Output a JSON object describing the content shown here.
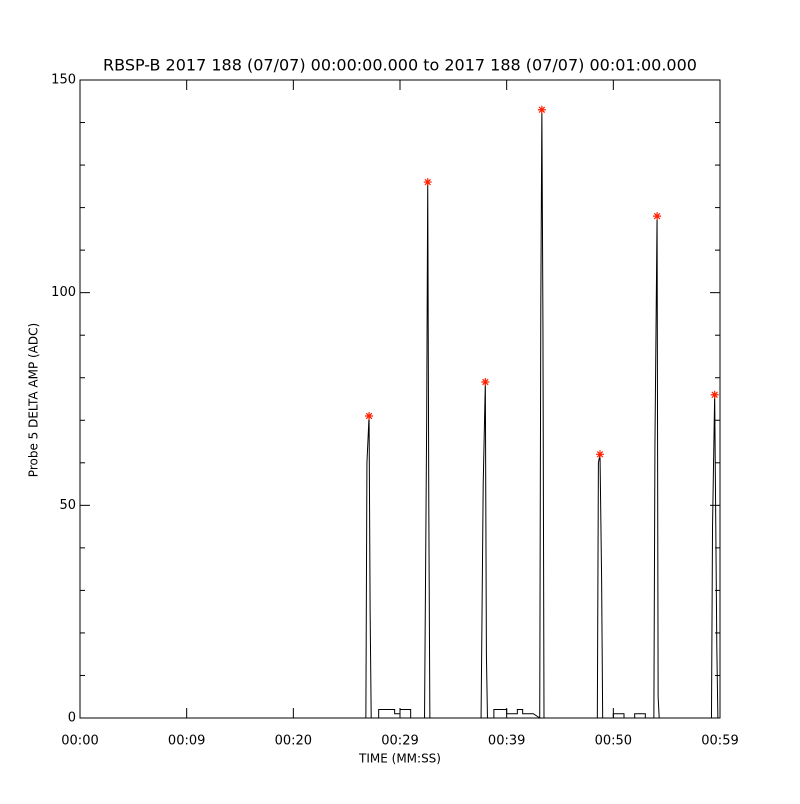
{
  "chart_data": {
    "type": "line",
    "title": "RBSP-B 2017 188 (07/07) 00:00:00.000 to 2017 188 (07/07) 00:01:00.000",
    "xlabel": "TIME (MM:SS)",
    "ylabel": "Probe 5 DELTA AMP (ADC)",
    "xlim": [
      0,
      60
    ],
    "ylim": [
      0,
      150
    ],
    "xticks": [
      {
        "value": 0,
        "label": "00:00"
      },
      {
        "value": 10,
        "label": "00:09"
      },
      {
        "value": 20,
        "label": "00:20"
      },
      {
        "value": 30,
        "label": "00:29"
      },
      {
        "value": 40,
        "label": "00:39"
      },
      {
        "value": 50,
        "label": "00:50"
      },
      {
        "value": 60,
        "label": "00:59"
      }
    ],
    "yticks": [
      0,
      50,
      100,
      150
    ],
    "yminorticks": [
      10,
      20,
      30,
      40,
      60,
      70,
      80,
      90,
      110,
      120,
      130,
      140
    ],
    "series": [
      {
        "color": "#000000",
        "marker": "none",
        "x": [
          0,
          26.8,
          26.9,
          27.1,
          27.2,
          27.3,
          28,
          28,
          29.5,
          29.5,
          30,
          30,
          31,
          31,
          32.3,
          32.5,
          32.6,
          32.7,
          32.8,
          37.6,
          37.8,
          38,
          38.1,
          38.2,
          38.8,
          38.8,
          40,
          40,
          41,
          41,
          41.5,
          41.5,
          42.5,
          43.1,
          43.2,
          43.3,
          43.4,
          43.5,
          48.5,
          48.6,
          48.75,
          48.9,
          49,
          50,
          50,
          51,
          51,
          52,
          52,
          53,
          53,
          53.8,
          53.9,
          54.1,
          54.2,
          54.3,
          59.2,
          59.3,
          59.5,
          59.7,
          59.8
        ],
        "values": [
          0,
          0,
          60,
          71,
          25,
          0,
          0,
          2,
          2,
          1,
          1,
          2,
          2,
          0,
          0,
          70,
          126,
          50,
          0,
          0,
          55,
          79,
          15,
          0,
          0,
          2,
          2,
          1,
          1,
          2,
          2,
          1,
          1,
          0,
          97,
          143,
          93,
          0,
          0,
          60,
          62,
          33,
          0,
          0,
          1,
          1,
          0,
          0,
          1,
          1,
          0,
          0,
          64,
          118,
          5,
          0,
          0,
          45,
          76,
          17,
          0
        ]
      },
      {
        "color": "#ff2000",
        "marker": "asterisk",
        "x": [
          27.1,
          32.6,
          38,
          43.3,
          48.75,
          54.1,
          59.5
        ],
        "values": [
          71,
          126,
          79,
          143,
          62,
          118,
          76
        ]
      }
    ]
  }
}
